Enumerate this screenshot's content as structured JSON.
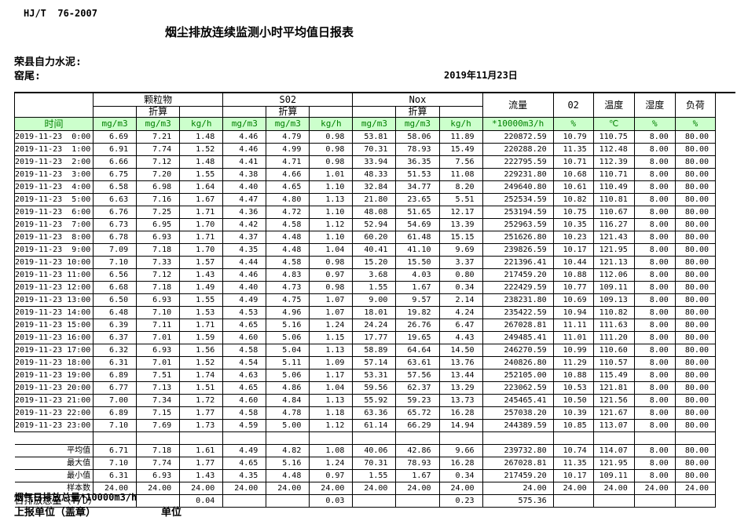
{
  "page": {
    "standard": "HJ/T  76-2007",
    "title": "烟尘排放连续监测小时平均值日报表",
    "company": "荣县自力水泥:",
    "station": "窑尾:",
    "date": "2019年11月23日"
  },
  "colors": {
    "header_bg": "#CCFFCC",
    "header_text": "#008000"
  },
  "table": {
    "time_label": "时间",
    "conv_label": "折算",
    "groups": [
      {
        "label": "颗粒物"
      },
      {
        "label": "S02"
      },
      {
        "label": "Nox"
      }
    ],
    "flow_label": "流量",
    "o2_label": "02",
    "temp_label": "温度",
    "humidity_label": "湿度",
    "load_label": "负荷",
    "units": [
      "mg/m3",
      "mg/m3",
      "kg/h",
      "mg/m3",
      "mg/m3",
      "kg/h",
      "mg/m3",
      "mg/m3",
      "kg/h",
      "*10000m3/h",
      "%",
      "℃",
      "%",
      "%"
    ],
    "rows": [
      {
        "time": "2019-11-23  0:00",
        "values": [
          "6.69",
          "7.21",
          "1.48",
          "4.46",
          "4.79",
          "0.98",
          "53.81",
          "58.06",
          "11.89",
          "220872.59",
          "10.79",
          "110.75",
          "8.00",
          "80.00"
        ]
      },
      {
        "time": "2019-11-23  1:00",
        "values": [
          "6.91",
          "7.74",
          "1.52",
          "4.46",
          "4.99",
          "0.98",
          "70.31",
          "78.93",
          "15.49",
          "220288.20",
          "11.35",
          "112.48",
          "8.00",
          "80.00"
        ]
      },
      {
        "time": "2019-11-23  2:00",
        "values": [
          "6.66",
          "7.12",
          "1.48",
          "4.41",
          "4.71",
          "0.98",
          "33.94",
          "36.35",
          "7.56",
          "222795.59",
          "10.71",
          "112.39",
          "8.00",
          "80.00"
        ]
      },
      {
        "time": "2019-11-23  3:00",
        "values": [
          "6.75",
          "7.20",
          "1.55",
          "4.38",
          "4.66",
          "1.01",
          "48.33",
          "51.53",
          "11.08",
          "229231.80",
          "10.68",
          "110.71",
          "8.00",
          "80.00"
        ]
      },
      {
        "time": "2019-11-23  4:00",
        "values": [
          "6.58",
          "6.98",
          "1.64",
          "4.40",
          "4.65",
          "1.10",
          "32.84",
          "34.77",
          "8.20",
          "249640.80",
          "10.61",
          "110.49",
          "8.00",
          "80.00"
        ]
      },
      {
        "time": "2019-11-23  5:00",
        "values": [
          "6.63",
          "7.16",
          "1.67",
          "4.47",
          "4.80",
          "1.13",
          "21.80",
          "23.65",
          "5.51",
          "252534.59",
          "10.82",
          "110.81",
          "8.00",
          "80.00"
        ]
      },
      {
        "time": "2019-11-23  6:00",
        "values": [
          "6.76",
          "7.25",
          "1.71",
          "4.36",
          "4.72",
          "1.10",
          "48.08",
          "51.65",
          "12.17",
          "253194.59",
          "10.75",
          "110.67",
          "8.00",
          "80.00"
        ]
      },
      {
        "time": "2019-11-23  7:00",
        "values": [
          "6.73",
          "6.95",
          "1.70",
          "4.42",
          "4.58",
          "1.12",
          "52.94",
          "54.69",
          "13.39",
          "252963.59",
          "10.35",
          "116.27",
          "8.00",
          "80.00"
        ]
      },
      {
        "time": "2019-11-23  8:00",
        "values": [
          "6.78",
          "6.93",
          "1.71",
          "4.37",
          "4.48",
          "1.10",
          "60.20",
          "61.48",
          "15.15",
          "251626.80",
          "10.23",
          "121.43",
          "8.00",
          "80.00"
        ]
      },
      {
        "time": "2019-11-23  9:00",
        "values": [
          "7.09",
          "7.18",
          "1.70",
          "4.35",
          "4.48",
          "1.04",
          "40.41",
          "41.10",
          "9.69",
          "239826.59",
          "10.17",
          "121.95",
          "8.00",
          "80.00"
        ]
      },
      {
        "time": "2019-11-23 10:00",
        "values": [
          "7.10",
          "7.33",
          "1.57",
          "4.44",
          "4.58",
          "0.98",
          "15.20",
          "15.50",
          "3.37",
          "221396.41",
          "10.44",
          "121.13",
          "8.00",
          "80.00"
        ]
      },
      {
        "time": "2019-11-23 11:00",
        "values": [
          "6.56",
          "7.12",
          "1.43",
          "4.46",
          "4.83",
          "0.97",
          "3.68",
          "4.03",
          "0.80",
          "217459.20",
          "10.88",
          "112.06",
          "8.00",
          "80.00"
        ]
      },
      {
        "time": "2019-11-23 12:00",
        "values": [
          "6.68",
          "7.18",
          "1.49",
          "4.40",
          "4.73",
          "0.98",
          "1.55",
          "1.67",
          "0.34",
          "222429.59",
          "10.77",
          "109.11",
          "8.00",
          "80.00"
        ]
      },
      {
        "time": "2019-11-23 13:00",
        "values": [
          "6.50",
          "6.93",
          "1.55",
          "4.49",
          "4.75",
          "1.07",
          "9.00",
          "9.57",
          "2.14",
          "238231.80",
          "10.69",
          "109.13",
          "8.00",
          "80.00"
        ]
      },
      {
        "time": "2019-11-23 14:00",
        "values": [
          "6.48",
          "7.10",
          "1.53",
          "4.53",
          "4.96",
          "1.07",
          "18.01",
          "19.82",
          "4.24",
          "235422.59",
          "10.94",
          "110.82",
          "8.00",
          "80.00"
        ]
      },
      {
        "time": "2019-11-23 15:00",
        "values": [
          "6.39",
          "7.11",
          "1.71",
          "4.65",
          "5.16",
          "1.24",
          "24.24",
          "26.76",
          "6.47",
          "267028.81",
          "11.11",
          "111.63",
          "8.00",
          "80.00"
        ]
      },
      {
        "time": "2019-11-23 16:00",
        "values": [
          "6.37",
          "7.01",
          "1.59",
          "4.60",
          "5.06",
          "1.15",
          "17.77",
          "19.65",
          "4.43",
          "249485.41",
          "11.01",
          "111.20",
          "8.00",
          "80.00"
        ]
      },
      {
        "time": "2019-11-23 17:00",
        "values": [
          "6.32",
          "6.93",
          "1.56",
          "4.58",
          "5.04",
          "1.13",
          "58.89",
          "64.64",
          "14.50",
          "246270.59",
          "10.99",
          "110.60",
          "8.00",
          "80.00"
        ]
      },
      {
        "time": "2019-11-23 18:00",
        "values": [
          "6.31",
          "7.01",
          "1.52",
          "4.54",
          "5.11",
          "1.09",
          "57.14",
          "63.61",
          "13.76",
          "240826.80",
          "11.29",
          "110.57",
          "8.00",
          "80.00"
        ]
      },
      {
        "time": "2019-11-23 19:00",
        "values": [
          "6.89",
          "7.51",
          "1.74",
          "4.63",
          "5.06",
          "1.17",
          "53.31",
          "57.56",
          "13.44",
          "252105.00",
          "10.88",
          "115.49",
          "8.00",
          "80.00"
        ]
      },
      {
        "time": "2019-11-23 20:00",
        "values": [
          "6.77",
          "7.13",
          "1.51",
          "4.65",
          "4.86",
          "1.04",
          "59.56",
          "62.37",
          "13.29",
          "223062.59",
          "10.53",
          "121.81",
          "8.00",
          "80.00"
        ]
      },
      {
        "time": "2019-11-23 21:00",
        "values": [
          "7.00",
          "7.34",
          "1.72",
          "4.60",
          "4.84",
          "1.13",
          "55.92",
          "59.23",
          "13.73",
          "245465.41",
          "10.50",
          "121.56",
          "8.00",
          "80.00"
        ]
      },
      {
        "time": "2019-11-23 22:00",
        "values": [
          "6.89",
          "7.15",
          "1.77",
          "4.58",
          "4.78",
          "1.18",
          "63.36",
          "65.72",
          "16.28",
          "257038.20",
          "10.39",
          "121.67",
          "8.00",
          "80.00"
        ]
      },
      {
        "time": "2019-11-23 23:00",
        "values": [
          "7.10",
          "7.69",
          "1.73",
          "4.59",
          "5.00",
          "1.12",
          "61.14",
          "66.29",
          "14.94",
          "244389.59",
          "10.85",
          "113.07",
          "8.00",
          "80.00"
        ]
      }
    ],
    "summary": [
      {
        "label": "平均值",
        "values": [
          "6.71",
          "7.18",
          "1.61",
          "4.49",
          "4.82",
          "1.08",
          "40.06",
          "42.86",
          "9.66",
          "239732.80",
          "10.74",
          "114.07",
          "8.00",
          "80.00"
        ]
      },
      {
        "label": "最大值",
        "values": [
          "7.10",
          "7.74",
          "1.77",
          "4.65",
          "5.16",
          "1.24",
          "70.31",
          "78.93",
          "16.28",
          "267028.81",
          "11.35",
          "121.95",
          "8.00",
          "80.00"
        ]
      },
      {
        "label": "最小值",
        "values": [
          "6.31",
          "6.93",
          "1.43",
          "4.35",
          "4.48",
          "0.97",
          "1.55",
          "1.67",
          "0.34",
          "217459.20",
          "10.17",
          "109.11",
          "8.00",
          "80.00"
        ]
      },
      {
        "label": "样本数",
        "values": [
          "24.00",
          "24.00",
          "24.00",
          "24.00",
          "24.00",
          "24.00",
          "24.00",
          "24.00",
          "24.00",
          "24.00",
          "24.00",
          "24.00",
          "24.00",
          "24.00"
        ]
      },
      {
        "label": "日排放总量（T/D）",
        "values": [
          "",
          "",
          "0.04",
          "",
          "",
          "0.03",
          "",
          "",
          "0.23",
          "575.36",
          "",
          "",
          "",
          ""
        ]
      }
    ]
  },
  "footer": {
    "note": "烟气日排放总量*10000m3/h",
    "report_org": "上报单位（盖章）",
    "unit": "单位"
  }
}
